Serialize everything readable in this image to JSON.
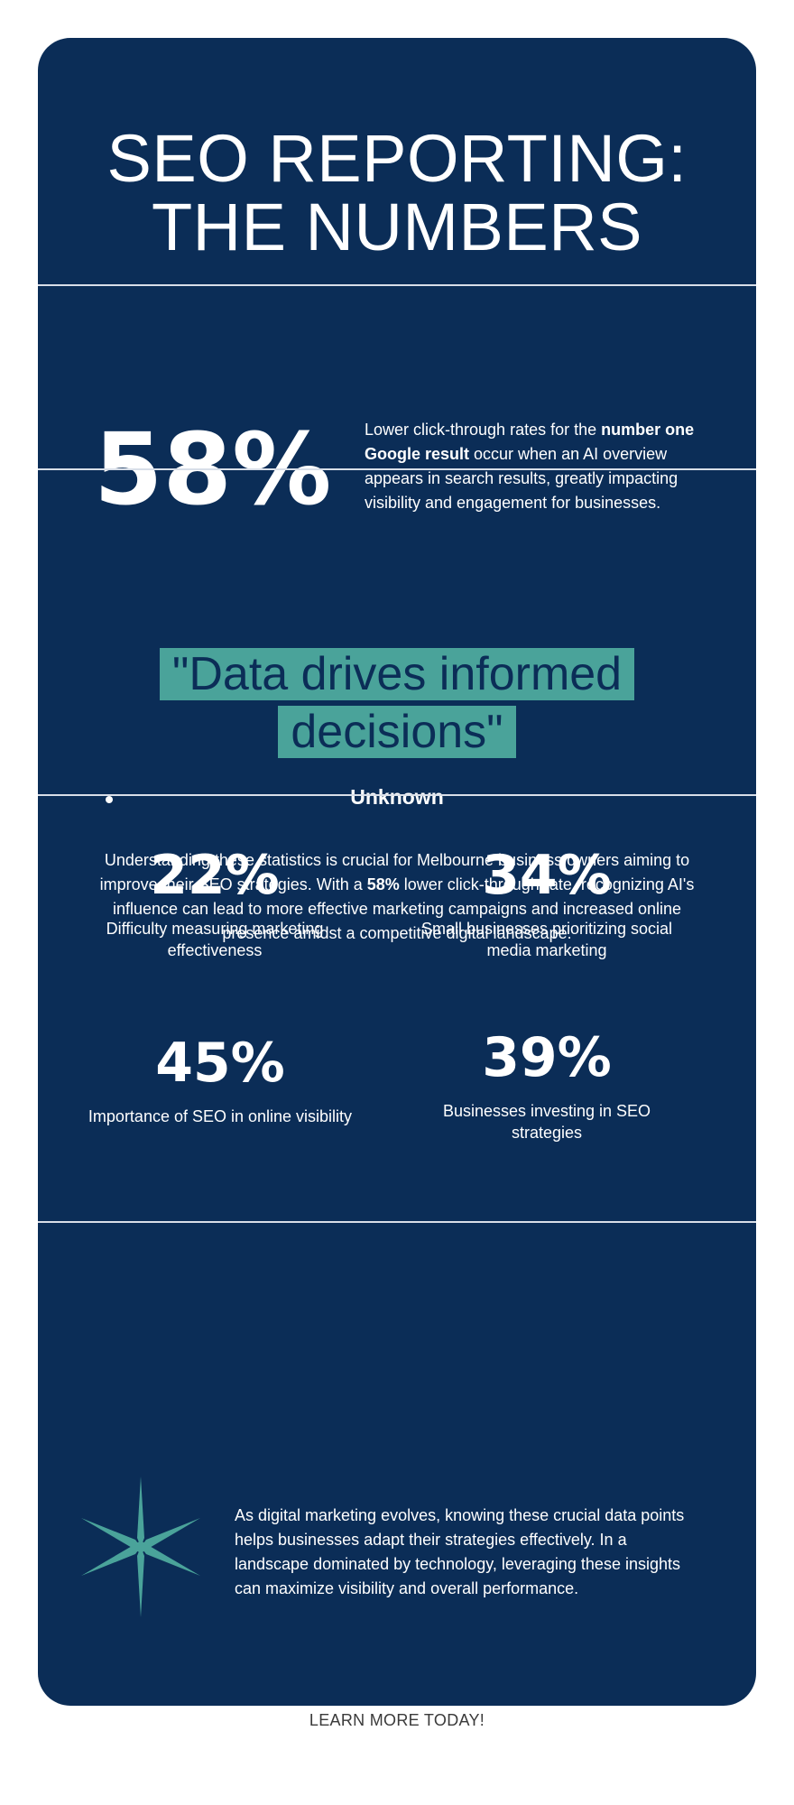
{
  "header": {
    "title_line1": "SEO REPORTING:",
    "title_line2": "THE NUMBERS"
  },
  "highlight": {
    "stat": "58%",
    "desc_pre": "Lower click-through rates for the ",
    "desc_bold": "number one Google result",
    "desc_post": " occur when an AI overview appears in search results, greatly impacting visibility and engagement for businesses."
  },
  "quote": {
    "text": "\"Data drives informed decisions\"",
    "author": "Unknown",
    "para_pre": "Understanding these statistics is crucial for Melbourne business owners aiming to improve their SEO strategies. With a ",
    "para_bold": "58%",
    "para_post": " lower click-through rate, recognizing AI's influence can lead to more effective marketing campaigns and increased online presence amidst a competitive digital landscape."
  },
  "stats": [
    {
      "value": "22%",
      "label": "Difficulty measuring marketing effectiveness"
    },
    {
      "value": "34%",
      "label": "Small businesses prioritizing social media marketing"
    },
    {
      "value": "45%",
      "label": "Importance of SEO in online visibility"
    },
    {
      "value": "39%",
      "label": "Businesses investing in SEO strategies"
    }
  ],
  "closing": {
    "icon": "sparkle-star-icon",
    "text": "As digital marketing evolves, knowing these crucial data points helps businesses adapt their strategies effectively. In a landscape dominated by technology, leveraging these insights can maximize visibility and overall performance."
  },
  "cta": {
    "label": "LEARN MORE TODAY!"
  },
  "colors": {
    "card_background": "#0b2d57",
    "accent_teal": "#4aa39a",
    "text_light": "#ffffff"
  }
}
